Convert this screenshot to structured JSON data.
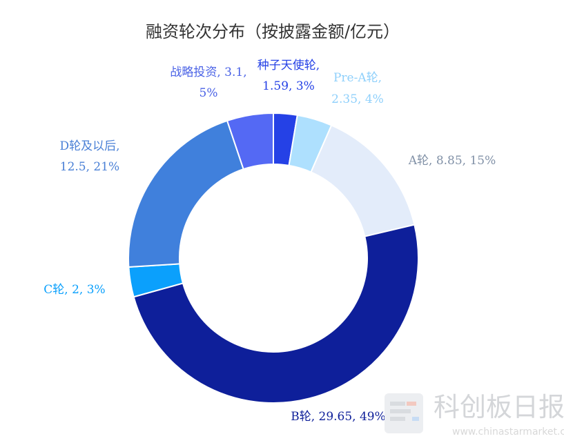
{
  "chart_data": {
    "type": "pie",
    "title": "融资轮次分布（按披露金额/亿元）",
    "slices": [
      {
        "name": "种子天使轮",
        "value": 1.59,
        "percent": "3%",
        "label": [
          "种子天使轮,",
          "1.59, 3%"
        ],
        "color": "#2541e6",
        "label_color": "#2541e6"
      },
      {
        "name": "Pre-A轮",
        "value": 2.35,
        "percent": "4%",
        "label": [
          "Pre-A轮,",
          "2.35, 4%"
        ],
        "color": "#aee0fe",
        "label_color": "#8fd0fb"
      },
      {
        "name": "A轮",
        "value": 8.85,
        "percent": "15%",
        "label": [
          "A轮, 8.85, 15%"
        ],
        "color": "#e3ecfa",
        "label_color": "#8090a6"
      },
      {
        "name": "B轮",
        "value": 29.65,
        "percent": "49%",
        "label": [
          "B轮, 29.65, 49%"
        ],
        "color": "#0e1f9a",
        "label_color": "#0e1f9a"
      },
      {
        "name": "C轮",
        "value": 2,
        "percent": "3%",
        "label": [
          "C轮, 2, 3%"
        ],
        "color": "#0ba0fc",
        "label_color": "#0ba0fc"
      },
      {
        "name": "D轮及以后",
        "value": 12.5,
        "percent": "21%",
        "label": [
          "D轮及以后,",
          "12.5, 21%"
        ],
        "color": "#4080dc",
        "label_color": "#4a80d6"
      },
      {
        "name": "战略投资",
        "value": 3.1,
        "percent": "5%",
        "label": [
          "战略投资, 3.1,",
          "5%"
        ],
        "color": "#5469f4",
        "label_color": "#4a62e6"
      }
    ]
  },
  "watermark": {
    "brand": "科创板日报",
    "url": "www.chinastarmarket.cn"
  }
}
